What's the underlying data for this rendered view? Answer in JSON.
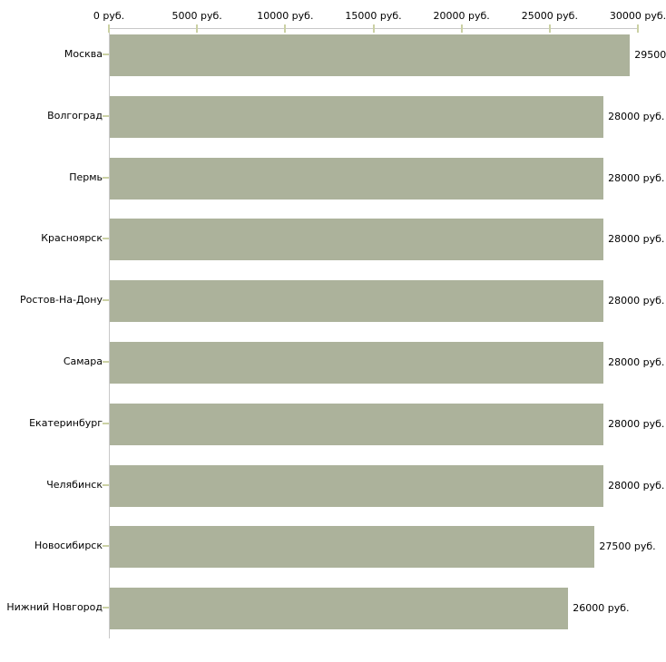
{
  "chart_data": {
    "type": "bar",
    "orientation": "horizontal",
    "title": "",
    "xlabel": "",
    "ylabel": "",
    "xlim": [
      0,
      30000
    ],
    "x_tick_interval": 5000,
    "x_tick_labels": [
      "0 руб.",
      "5000 руб.",
      "10000 руб.",
      "15000 руб.",
      "20000 руб.",
      "25000 руб.",
      "30000 руб."
    ],
    "categories": [
      "Москва",
      "Волгоград",
      "Пермь",
      "Красноярск",
      "Ростов-На-Дону",
      "Самара",
      "Екатеринбург",
      "Челябинск",
      "Новосибирск",
      "Нижний Новгород"
    ],
    "values": [
      29500,
      28000,
      28000,
      28000,
      28000,
      28000,
      28000,
      28000,
      27500,
      26000
    ],
    "value_labels": [
      "29500",
      "28000 руб.",
      "28000 руб.",
      "28000 руб.",
      "28000 руб.",
      "28000 руб.",
      "28000 руб.",
      "28000 руб.",
      "27500 руб.",
      "26000 руб."
    ],
    "grid": false,
    "legend": false,
    "colors": {
      "bar": "#acb29b",
      "axis_line": "#c8c8c8",
      "tick": "#cbd1a4",
      "text": "#000000",
      "background": "#ffffff"
    }
  }
}
